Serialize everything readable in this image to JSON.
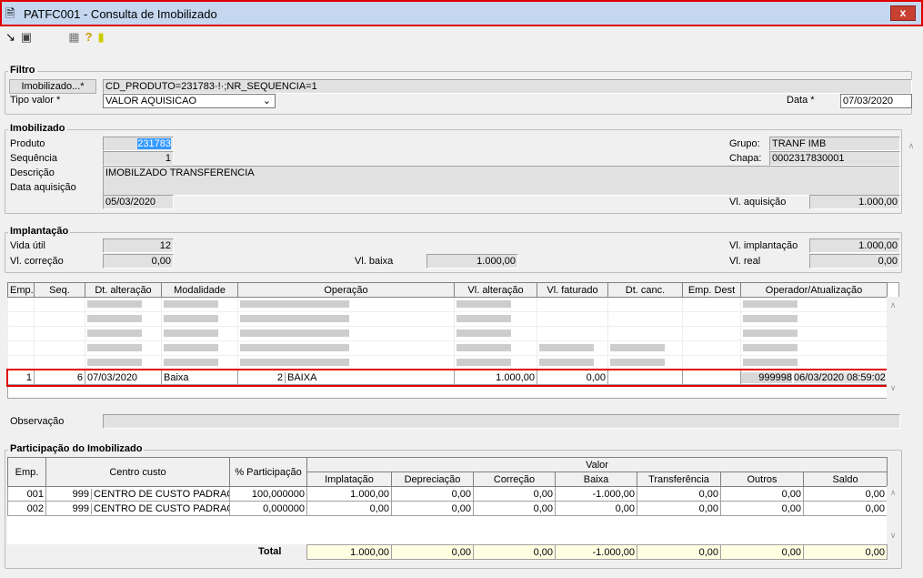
{
  "window": {
    "title": "PATFC001 - Consulta de Imobilizado",
    "close": "x"
  },
  "toolbar": [
    "export-icon",
    "copy-icon",
    "grid-icon",
    "help-icon",
    "exit-icon"
  ],
  "filtro": {
    "legend": "Filtro",
    "imobilizado_button": "Imobilizado...*",
    "imobilizado_value": "CD_PRODUTO=231783·!·;NR_SEQUENCIA=1",
    "tipo_label": "Tipo valor *",
    "tipo_value": "VALOR AQUISICAO",
    "data_label": "Data *",
    "data_value": "07/03/2020"
  },
  "imobilizado": {
    "legend": "Imobilizado",
    "produto_label": "Produto",
    "produto": "231783",
    "sequencia_label": "Sequência",
    "sequencia": "1",
    "descricao_label": "Descrição",
    "descricao": "IMOBILZADO TRANSFERENCIA",
    "data_label": "Data aquisição",
    "data": "05/03/2020",
    "grupo_label": "Grupo:",
    "grupo": "TRANF IMB",
    "chapa_label": "Chapa:",
    "chapa": "0002317830001",
    "vl_label": "Vl. aquisição",
    "vl": "1.000,00"
  },
  "implantacao": {
    "legend": "Implantação",
    "vida_label": "Vida útil",
    "vida": "12",
    "correcao_label": "Vl. correção",
    "correcao": "0,00",
    "baixa_label": "Vl. baixa",
    "baixa": "1.000,00",
    "impl_label": "Vl. implantação",
    "impl": "1.000,00",
    "real_label": "Vl. real",
    "real": "0,00"
  },
  "grid": {
    "columns": [
      "Emp.",
      "Seq.",
      "Dt. alteração",
      "Modalidade",
      "Operação",
      "Vl. alteração",
      "Vl. faturado",
      "Dt. canc.",
      "Emp. Dest",
      "Operador/Atualização"
    ],
    "selected_row": [
      "1",
      "6",
      "07/03/2020",
      "Baixa",
      "2",
      "BAIXA",
      "1.000,00",
      "0,00",
      "",
      "",
      "999998",
      "06/03/2020 08:59:02"
    ],
    "highlight_color": "#e00000"
  },
  "observacao": {
    "label": "Observação",
    "value": ""
  },
  "participacao": {
    "legend": "Participação do Imobilizado",
    "h_emp": "Emp.",
    "h_centro": "Centro custo",
    "h_part": "% Participação",
    "h_valor": "Valor",
    "sub": [
      "Implatação",
      "Depreciação",
      "Correção",
      "Baixa",
      "Transferência",
      "Outros",
      "Saldo"
    ],
    "rows": [
      [
        "001",
        "999",
        "CENTRO DE CUSTO PADRAO",
        "100,000000",
        "1.000,00",
        "0,00",
        "0,00",
        "-1.000,00",
        "0,00",
        "0,00",
        "0,00"
      ],
      [
        "002",
        "999",
        "CENTRO DE CUSTO PADRAO",
        "0,000000",
        "0,00",
        "0,00",
        "0,00",
        "0,00",
        "0,00",
        "0,00",
        "0,00"
      ]
    ],
    "total_label": "Total",
    "totals": [
      "1.000,00",
      "0,00",
      "0,00",
      "-1.000,00",
      "0,00",
      "0,00",
      "0,00"
    ]
  }
}
